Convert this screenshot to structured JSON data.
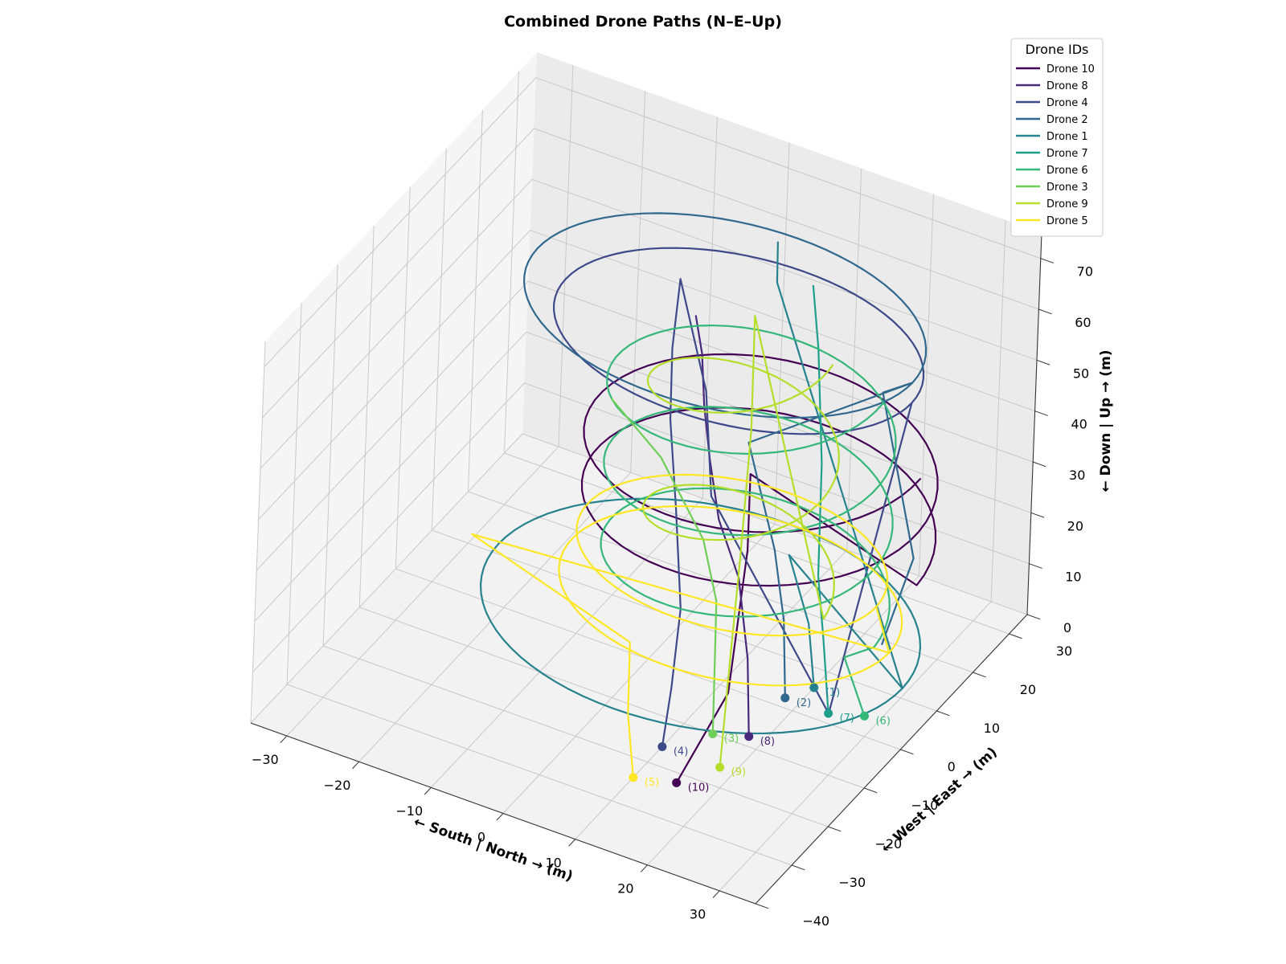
{
  "chart_data": {
    "type": "line3d",
    "title": "Combined Drone Paths (N–E–Up)",
    "xlabel": "← South | North → (m)",
    "ylabel": "← West | East → (m)",
    "zlabel": "← Down | Up → (m)",
    "xlim": [
      -35,
      35
    ],
    "ylim": [
      -40,
      35
    ],
    "zlim": [
      0,
      75
    ],
    "xticks": [
      -30,
      -20,
      -10,
      0,
      10,
      20,
      30
    ],
    "yticks": [
      -40,
      -30,
      -20,
      -10,
      0,
      10,
      20,
      30
    ],
    "zticks": [
      0,
      10,
      20,
      30,
      40,
      50,
      60,
      70
    ],
    "xtick_labels": [
      "−30",
      "−20",
      "−10",
      "0",
      "10",
      "20",
      "30"
    ],
    "ytick_labels": [
      "−40",
      "−30",
      "−20",
      "−10",
      "0",
      "10",
      "20",
      "30"
    ],
    "ztick_labels": [
      "0",
      "10",
      "20",
      "30",
      "40",
      "50",
      "60",
      "70"
    ],
    "grid": true,
    "legend": {
      "title": "Drone IDs",
      "position": "top-right"
    },
    "series": [
      {
        "name": "Drone 10",
        "label": "(10)",
        "color": "#440154",
        "start": [
          15,
          -22,
          0
        ],
        "path": [
          [
            15,
            -22,
            0
          ],
          [
            14,
            -6,
            5
          ],
          [
            14,
            -2,
            30
          ],
          [
            14,
            -2,
            45
          ],
          {
            "helix": {
              "cx": 12,
              "cy": 5,
              "r": 22,
              "z0": 28,
              "z1": 49,
              "turns": 2
            }
          }
        ]
      },
      {
        "name": "Drone 8",
        "label": "(8)",
        "color": "#482878",
        "start": [
          18,
          -8,
          0
        ],
        "path": [
          [
            18,
            -8,
            0
          ],
          [
            16,
            -5,
            12
          ],
          [
            12,
            0,
            22
          ],
          [
            8,
            2,
            30
          ],
          [
            6,
            3,
            40
          ],
          [
            4,
            5,
            48
          ],
          [
            2,
            8,
            55
          ],
          [
            0,
            10,
            60
          ]
        ]
      },
      {
        "name": "Drone 4",
        "label": "(4)",
        "color": "#3e4989",
        "start": [
          10,
          -16,
          0
        ],
        "path": [
          [
            10,
            -16,
            0
          ],
          [
            10,
            -14,
            10
          ],
          [
            8,
            -8,
            20
          ],
          [
            4,
            -2,
            33
          ],
          [
            -2,
            8,
            40
          ],
          [
            -4,
            12,
            50
          ],
          [
            -8,
            22,
            54
          ],
          [
            -2,
            18,
            38
          ],
          [
            4,
            8,
            28
          ],
          [
            25,
            0,
            2
          ],
          {
            "ellipse": {
              "cx": 6,
              "cy": 10,
              "rx": 24,
              "ry": 18,
              "z": 58
            }
          }
        ]
      },
      {
        "name": "Drone 2",
        "label": "(2)",
        "color": "#31688e",
        "start": [
          18,
          2,
          0
        ],
        "path": [
          [
            18,
            2,
            0
          ],
          [
            16,
            5,
            12
          ],
          [
            12,
            10,
            20
          ],
          [
            6,
            14,
            35
          ],
          {
            "ellipse": {
              "cx": 4,
              "cy": 10,
              "rx": 26,
              "ry": 20,
              "z": 62
            }
          },
          [
            26,
            10,
            58
          ],
          [
            32,
            8,
            30
          ],
          [
            30,
            4,
            15
          ]
        ]
      },
      {
        "name": "Drone 1",
        "label": "(1)",
        "color": "#26828e",
        "start": [
          20,
          6,
          0
        ],
        "path": [
          [
            20,
            6,
            0
          ],
          [
            18,
            8,
            10
          ],
          [
            14,
            10,
            20
          ],
          {
            "ellipse": {
              "cx": 6,
              "cy": 2,
              "rx": 28,
              "ry": 24,
              "z": 10
            }
          },
          [
            10,
            12,
            70
          ],
          [
            8,
            16,
            74
          ]
        ]
      },
      {
        "name": "Drone 7",
        "label": "(7)",
        "color": "#1f9e89",
        "start": [
          24,
          2,
          0
        ],
        "path": [
          [
            24,
            2,
            0
          ],
          [
            22,
            4,
            12
          ],
          [
            20,
            6,
            22
          ],
          [
            18,
            10,
            40
          ],
          [
            16,
            12,
            60
          ],
          [
            14,
            14,
            70
          ]
        ]
      },
      {
        "name": "Drone 6",
        "label": "(6)",
        "color": "#35b779",
        "start": [
          28,
          4,
          0
        ],
        "path": [
          [
            28,
            4,
            0
          ],
          [
            24,
            6,
            8
          ],
          {
            "helix": {
              "cx": 10,
              "cy": 6,
              "r": 18,
              "z0": 12,
              "z1": 60,
              "turns": 3
            }
          }
        ]
      },
      {
        "name": "Drone 3",
        "label": "(3)",
        "color": "#6ece58",
        "start": [
          14,
          -10,
          0
        ],
        "path": [
          [
            14,
            -10,
            0
          ],
          [
            12,
            -6,
            10
          ],
          [
            10,
            -2,
            18
          ],
          [
            6,
            2,
            25
          ],
          [
            -4,
            10,
            30
          ],
          [
            -14,
            16,
            32
          ]
        ]
      },
      {
        "name": "Drone 9",
        "label": "(9)",
        "color": "#b5de2b",
        "start": [
          18,
          -16,
          0
        ],
        "path": [
          [
            18,
            -16,
            0
          ],
          [
            16,
            -10,
            16
          ],
          [
            14,
            -4,
            30
          ],
          [
            12,
            2,
            50
          ],
          [
            10,
            6,
            68
          ],
          {
            "helix": {
              "cx": 8,
              "cy": 8,
              "r": 12,
              "z0": 12,
              "z1": 62,
              "turns": 2
            }
          }
        ]
      },
      {
        "name": "Drone 5",
        "label": "(5)",
        "color": "#fde725",
        "start": [
          10,
          -24,
          0
        ],
        "path": [
          [
            10,
            -24,
            0
          ],
          [
            8,
            -22,
            10
          ],
          [
            6,
            -18,
            20
          ],
          [
            -20,
            -10,
            22
          ],
          {
            "ellipse": {
              "cx": 10,
              "cy": 2,
              "rx": 22,
              "ry": 18,
              "z": 16
            }
          },
          {
            "ellipse": {
              "cx": 10,
              "cy": 2,
              "rx": 20,
              "ry": 16,
              "z": 24
            }
          }
        ]
      }
    ]
  }
}
